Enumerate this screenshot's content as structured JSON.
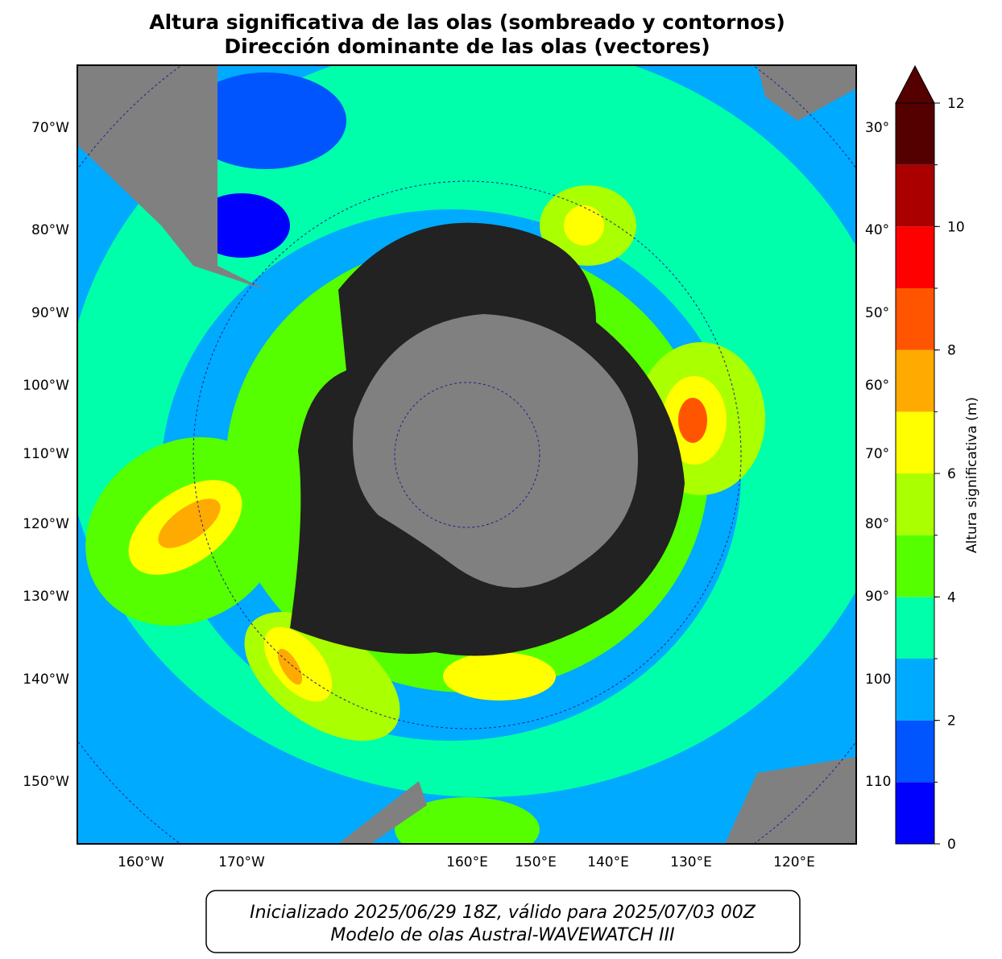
{
  "title": [
    "Altura significativa de las olas (sombreado y contornos)",
    "Dirección dominante de las olas (vectores)"
  ],
  "map": {
    "left_labels": [
      "70°W",
      "80°W",
      "90°W",
      "100°W",
      "110°W",
      "120°W",
      "130°W",
      "140°W",
      "150°W"
    ],
    "right_labels": [
      "30°",
      "40°",
      "50°",
      "60°",
      "70°",
      "80°",
      "90°",
      "100",
      "110"
    ],
    "bottom_labels": [
      "160°W",
      "170°W",
      "160°E",
      "150°E",
      "140°E",
      "130°E",
      "120°E"
    ]
  },
  "colorbar": {
    "label": "Altura significativa (m)",
    "lim": [
      0,
      12
    ],
    "levels": [
      0,
      1,
      2,
      3,
      4,
      5,
      6,
      7,
      8,
      9,
      10,
      11,
      12
    ],
    "colors": [
      "#0000ff",
      "#0055ff",
      "#00aaff",
      "#00ffaa",
      "#55ff00",
      "#aaff00",
      "#ffff00",
      "#ffaa00",
      "#ff5500",
      "#ff0000",
      "#aa0000",
      "#550000"
    ],
    "extend_color": "#550000",
    "ticks": [
      0,
      2,
      4,
      6,
      8,
      10,
      12
    ]
  },
  "footer": [
    "Inicializado 2025/06/29 18Z, válido para 2025/07/03 00Z",
    "Modelo de olas Austral-WAVEWATCH III"
  ]
}
